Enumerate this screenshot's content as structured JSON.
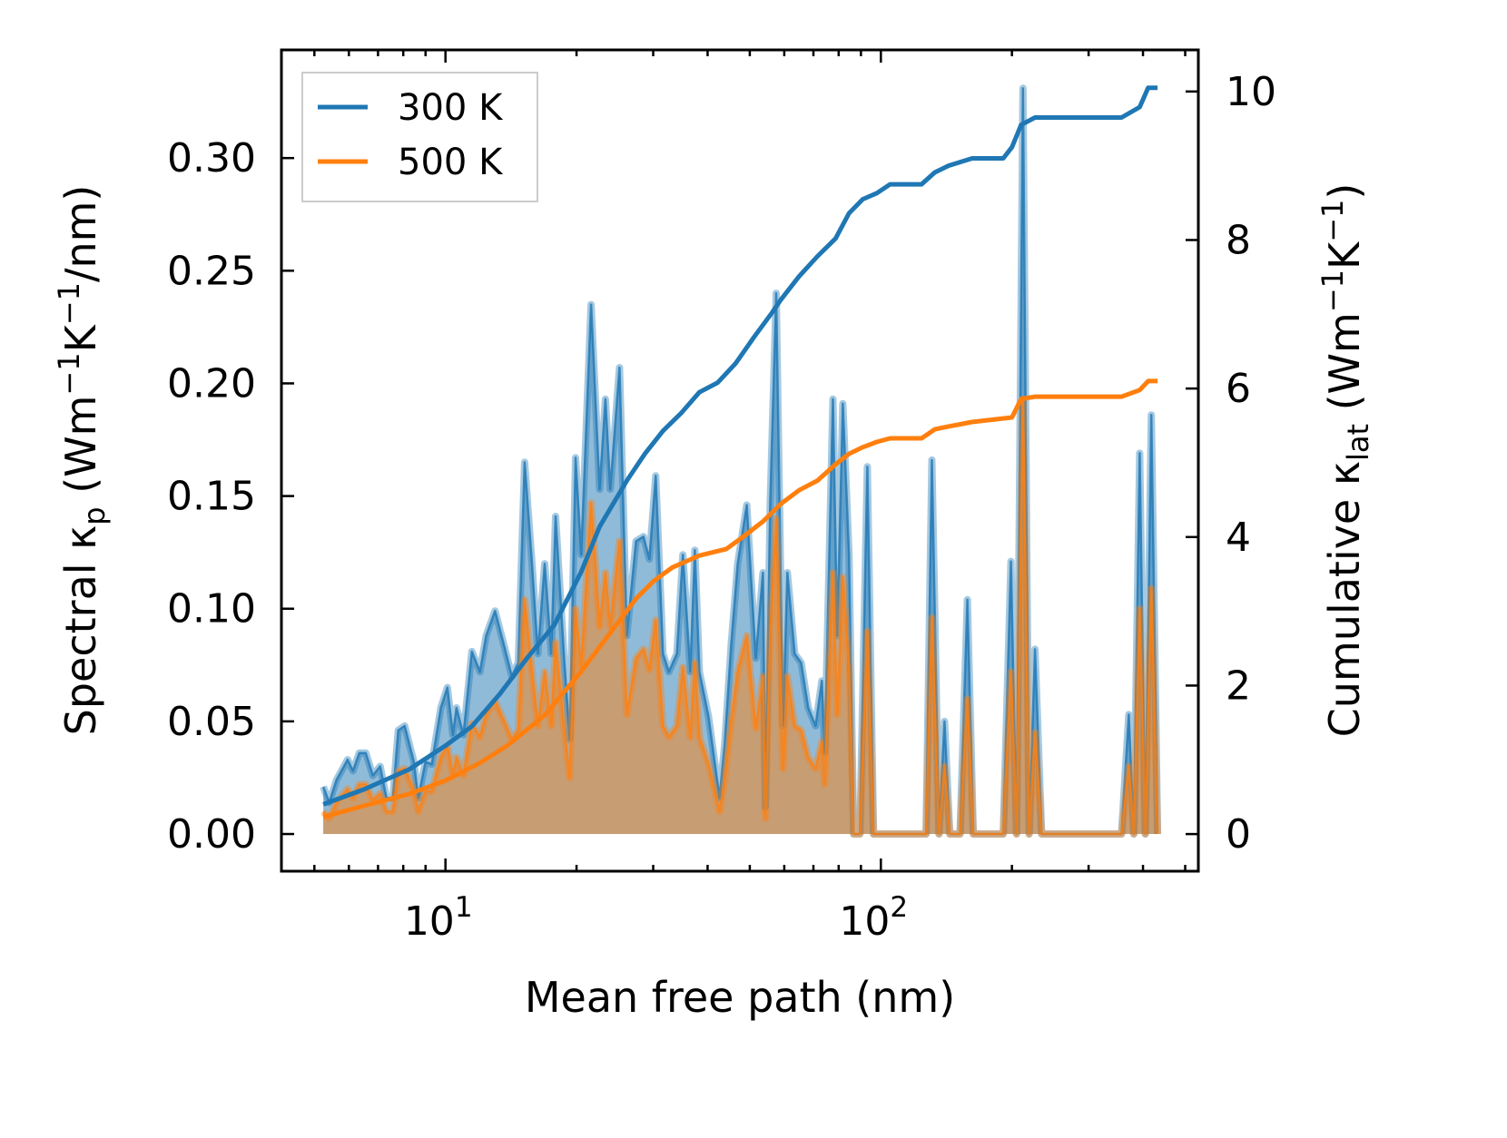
{
  "chart_data": {
    "type": "area",
    "xlabel": "Mean free path (nm)",
    "ylabel": {
      "pre": "Spectral κ",
      "sub": "p",
      "mid": " (Wm",
      "sup1": "−1",
      "k": "K",
      "sup2": "−1",
      "post": "/nm)"
    },
    "ylabel_right": {
      "pre": "Cumulative κ",
      "sub": "lat",
      "mid": " (Wm",
      "sup1": "−1",
      "k": "K",
      "sup2": "−1",
      "post": ")"
    },
    "xscale": "log",
    "xlim": [
      4.2,
      536
    ],
    "ylim": [
      -0.0165,
      0.348
    ],
    "ylim_right": [
      -0.5,
      10.56
    ],
    "x_ticks": [
      {
        "value": 10,
        "base": "10",
        "exp": "1"
      },
      {
        "value": 100,
        "base": "10",
        "exp": "2"
      }
    ],
    "y_ticks": [
      {
        "value": 0,
        "label": "0.00"
      },
      {
        "value": 0.05,
        "label": "0.05"
      },
      {
        "value": 0.1,
        "label": "0.10"
      },
      {
        "value": 0.15,
        "label": "0.15"
      },
      {
        "value": 0.2,
        "label": "0.20"
      },
      {
        "value": 0.25,
        "label": "0.25"
      },
      {
        "value": 0.3,
        "label": "0.30"
      }
    ],
    "y_ticks_right": [
      {
        "value": 0,
        "label": "0"
      },
      {
        "value": 2,
        "label": "2"
      },
      {
        "value": 4,
        "label": "4"
      },
      {
        "value": 6,
        "label": "6"
      },
      {
        "value": 8,
        "label": "8"
      },
      {
        "value": 10,
        "label": "10"
      }
    ],
    "legend": {
      "placement": "top-left",
      "entries": [
        "300 K",
        "500 K"
      ]
    },
    "colors": {
      "300 K": "#1f77b4",
      "500 K": "#ff7f0e"
    },
    "spectral_x": [
      5.24,
      5.41,
      5.62,
      5.96,
      6.13,
      6.34,
      6.56,
      6.81,
      7.08,
      7.32,
      7.57,
      7.79,
      8.06,
      8.46,
      8.66,
      9.0,
      9.3,
      9.76,
      10.1,
      10.4,
      10.6,
      11.0,
      11.5,
      12.0,
      12.4,
      13.0,
      13.7,
      14.2,
      14.7,
      15.2,
      15.8,
      16.3,
      16.9,
      17.5,
      17.9,
      18.7,
      19.3,
      19.9,
      20.5,
      21.6,
      22.6,
      23.3,
      23.9,
      25.1,
      26.1,
      27.4,
      28.5,
      29.4,
      30.4,
      31.6,
      32.6,
      34.0,
      35.1,
      36.5,
      37.4,
      38.3,
      40.2,
      42.6,
      43.8,
      45.3,
      46.9,
      49.2,
      51.6,
      53.6,
      54.3,
      55.7,
      57.5,
      59.6,
      61.0,
      63.4,
      65.6,
      68.1,
      70.8,
      73.2,
      74.3,
      77.6,
      79.4,
      81.8,
      84.5,
      86.6,
      89.5,
      93.1,
      96.2,
      102.4,
      127,
      131,
      136,
      140,
      144,
      152,
      158,
      163,
      191,
      199,
      205,
      212,
      219,
      226,
      234,
      357,
      371,
      381,
      393,
      405,
      418,
      432
    ],
    "spectral_series": [
      {
        "name": "300 K",
        "values": [
          0.021,
          0.014,
          0.024,
          0.033,
          0.028,
          0.036,
          0.036,
          0.026,
          0.03,
          0.016,
          0.016,
          0.046,
          0.048,
          0.032,
          0.016,
          0.032,
          0.031,
          0.056,
          0.065,
          0.044,
          0.056,
          0.044,
          0.081,
          0.072,
          0.088,
          0.099,
          0.082,
          0.07,
          0.076,
          0.165,
          0.12,
          0.08,
          0.12,
          0.08,
          0.141,
          0.08,
          0.042,
          0.167,
          0.124,
          0.235,
          0.153,
          0.193,
          0.153,
          0.207,
          0.088,
          0.13,
          0.132,
          0.122,
          0.159,
          0.08,
          0.072,
          0.08,
          0.124,
          0.072,
          0.126,
          0.072,
          0.052,
          0.016,
          0.04,
          0.084,
          0.12,
          0.146,
          0.078,
          0.116,
          0.012,
          0.147,
          0.24,
          0.048,
          0.116,
          0.08,
          0.076,
          0.056,
          0.048,
          0.068,
          0.036,
          0.193,
          0.088,
          0.191,
          0.124,
          0,
          0,
          0.163,
          0,
          0,
          0,
          0.166,
          0,
          0.05,
          0,
          0,
          0.104,
          0,
          0,
          0.121,
          0,
          0.331,
          0,
          0.082,
          0,
          0,
          0.053,
          0,
          0.169,
          0,
          0.186,
          0
        ]
      },
      {
        "name": "500 K",
        "values": [
          0.01,
          0.007,
          0.014,
          0.02,
          0.016,
          0.022,
          0.022,
          0.015,
          0.018,
          0.01,
          0.01,
          0.028,
          0.029,
          0.019,
          0.01,
          0.019,
          0.019,
          0.034,
          0.039,
          0.026,
          0.034,
          0.026,
          0.049,
          0.043,
          0.053,
          0.059,
          0.049,
          0.042,
          0.046,
          0.104,
          0.072,
          0.048,
          0.072,
          0.048,
          0.085,
          0.048,
          0.025,
          0.1,
          0.074,
          0.147,
          0.092,
          0.116,
          0.092,
          0.13,
          0.053,
          0.078,
          0.082,
          0.073,
          0.095,
          0.048,
          0.043,
          0.048,
          0.074,
          0.043,
          0.076,
          0.043,
          0.031,
          0.01,
          0.024,
          0.05,
          0.072,
          0.088,
          0.047,
          0.07,
          0.007,
          0.088,
          0.14,
          0.029,
          0.07,
          0.048,
          0.046,
          0.034,
          0.029,
          0.041,
          0.022,
          0.116,
          0.053,
          0.114,
          0.074,
          0,
          0,
          0.09,
          0,
          0,
          0,
          0.096,
          0,
          0.03,
          0,
          0,
          0.06,
          0,
          0,
          0.072,
          0,
          0.193,
          0,
          0.045,
          0,
          0,
          0.03,
          0,
          0.1,
          0,
          0.109,
          0
        ]
      }
    ],
    "cumulative_series": [
      {
        "name": "300 K",
        "x": [
          5.24,
          6.49,
          8.25,
          10,
          11.5,
          13.3,
          15.4,
          17.8,
          20.5,
          22.6,
          26.1,
          28.7,
          31.6,
          34.8,
          38.3,
          42.2,
          46.4,
          51.1,
          56.2,
          59.0,
          64.9,
          71.5,
          78.7,
          84.5,
          90.9,
          97.8,
          105,
          124,
          133,
          143,
          162,
          191,
          200,
          210,
          226,
          357,
          393,
          411,
          432
        ],
        "values": [
          0.4,
          0.6,
          0.87,
          1.19,
          1.45,
          1.88,
          2.37,
          2.82,
          3.53,
          4.14,
          4.76,
          5.12,
          5.43,
          5.67,
          5.95,
          6.08,
          6.34,
          6.69,
          7.02,
          7.2,
          7.51,
          7.78,
          8.02,
          8.36,
          8.55,
          8.63,
          8.75,
          8.75,
          8.91,
          9.0,
          9.1,
          9.1,
          9.25,
          9.55,
          9.65,
          9.65,
          9.79,
          10.05,
          10.05
        ]
      },
      {
        "name": "500 K",
        "x": [
          5.24,
          6.49,
          8.25,
          10,
          12.1,
          14.0,
          16.9,
          20.5,
          23.7,
          27.4,
          30.1,
          33.2,
          38.3,
          44.2,
          48.7,
          53.6,
          59.0,
          64.9,
          71.5,
          78.7,
          84.5,
          90.9,
          97.8,
          105,
          124,
          133,
          143,
          162,
          200,
          210,
          226,
          357,
          393,
          411,
          432
        ],
        "values": [
          0.23,
          0.38,
          0.54,
          0.72,
          0.97,
          1.21,
          1.6,
          2.19,
          2.68,
          3.17,
          3.41,
          3.59,
          3.75,
          3.84,
          4.02,
          4.21,
          4.45,
          4.63,
          4.76,
          4.98,
          5.12,
          5.21,
          5.28,
          5.33,
          5.33,
          5.45,
          5.49,
          5.55,
          5.61,
          5.86,
          5.89,
          5.89,
          5.98,
          6.1,
          6.1
        ]
      }
    ]
  }
}
